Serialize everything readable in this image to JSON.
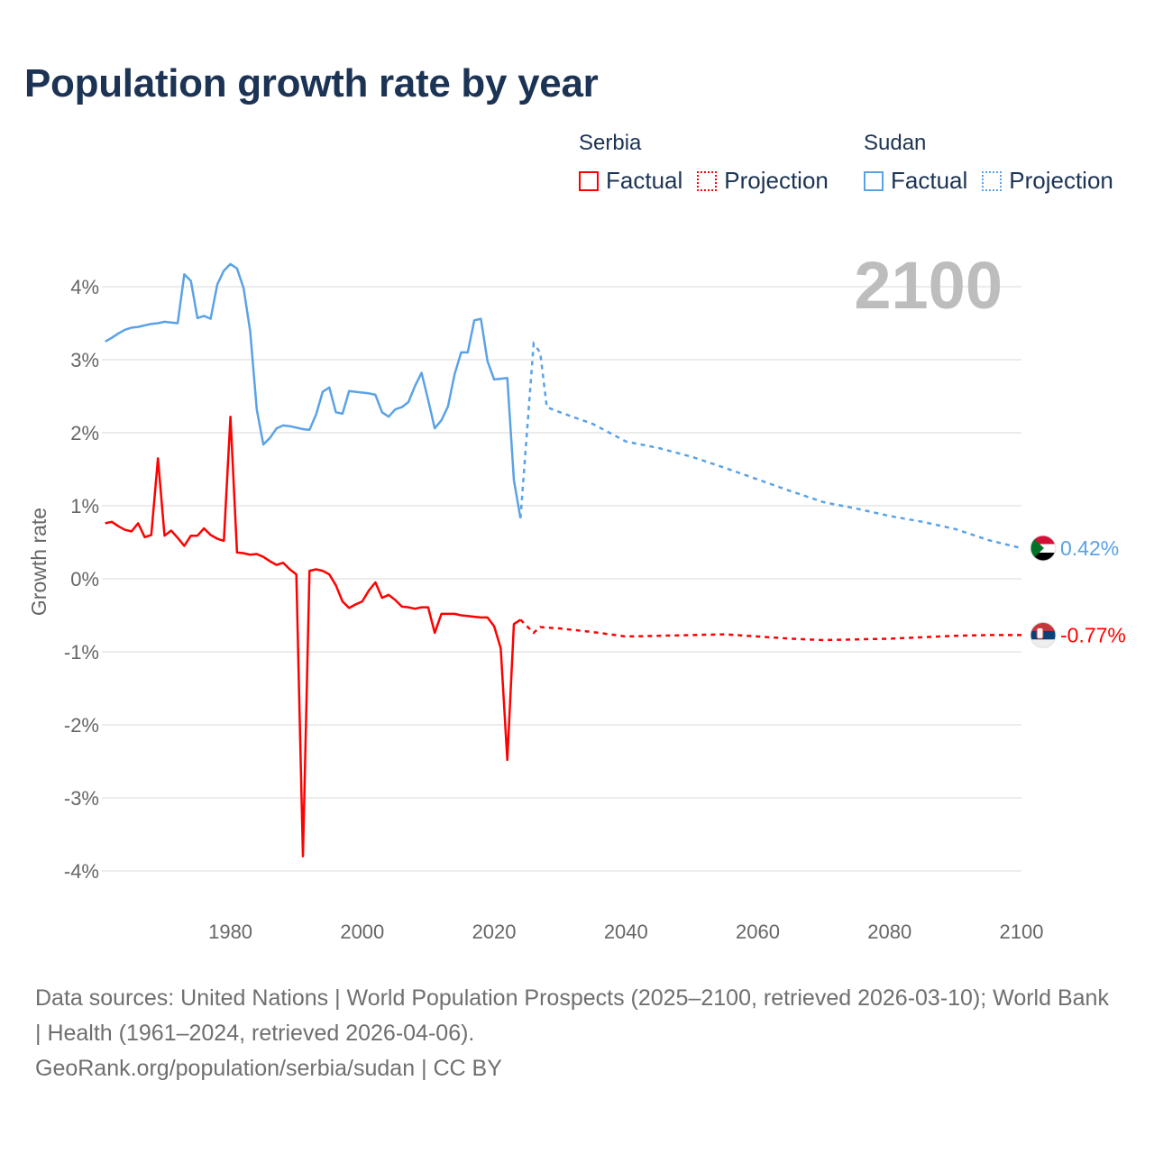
{
  "title": "Population growth rate by year",
  "legend": {
    "groups": [
      {
        "country": "Serbia",
        "factual": "Factual",
        "projection": "Projection",
        "color": "#ff0000"
      },
      {
        "country": "Sudan",
        "factual": "Factual",
        "projection": "Projection",
        "color": "#5aa2e6"
      }
    ]
  },
  "year_overlay": "2100",
  "footer": {
    "sources": "Data sources: United Nations | World Population Prospects (2025–2100, retrieved 2026-03-10); World Bank | Health (1961–2024, retrieved 2026-04-06).",
    "credit": "GeoRank.org/population/serbia/sudan | CC BY"
  },
  "chart_data": {
    "type": "line",
    "title": "Population growth rate by year",
    "xlabel": "",
    "ylabel": "Growth rate",
    "xlim": [
      1960.5,
      2100
    ],
    "ylim": [
      -4.5,
      4.5
    ],
    "x_ticks": [
      1980,
      2000,
      2020,
      2040,
      2060,
      2080,
      2100
    ],
    "x_tick_labels": [
      "1980",
      "2000",
      "2020",
      "2040",
      "2060",
      "2080",
      "2100"
    ],
    "y_ticks": [
      4,
      3,
      2,
      1,
      0,
      -1,
      -2,
      -3,
      -4
    ],
    "y_tick_labels": [
      "4%",
      "3%",
      "2%",
      "1%",
      "0%",
      "-1%",
      "-2%",
      "-3%",
      "-4%"
    ],
    "grid": true,
    "legend_position": "top-right",
    "series": [
      {
        "name": "Sudan",
        "color": "#5aa2e6",
        "end_label": "0.42%",
        "factual": {
          "x": [
            1961,
            1962,
            1963,
            1964,
            1965,
            1966,
            1967,
            1968,
            1969,
            1970,
            1971,
            1972,
            1973,
            1974,
            1975,
            1976,
            1977,
            1978,
            1979,
            1980,
            1981,
            1982,
            1983,
            1984,
            1985,
            1986,
            1987,
            1988,
            1989,
            1990,
            1991,
            1992,
            1993,
            1994,
            1995,
            1996,
            1997,
            1998,
            1999,
            2000,
            2001,
            2002,
            2003,
            2004,
            2005,
            2006,
            2007,
            2008,
            2009,
            2010,
            2011,
            2012,
            2013,
            2014,
            2015,
            2016,
            2017,
            2018,
            2019,
            2020,
            2021,
            2022,
            2023,
            2024
          ],
          "y": [
            3.25,
            3.3,
            3.36,
            3.41,
            3.44,
            3.45,
            3.47,
            3.49,
            3.5,
            3.52,
            3.51,
            3.5,
            4.17,
            4.08,
            3.57,
            3.6,
            3.56,
            4.03,
            4.22,
            4.31,
            4.25,
            3.98,
            3.39,
            2.32,
            1.84,
            1.93,
            2.06,
            2.1,
            2.09,
            2.07,
            2.05,
            2.04,
            2.25,
            2.56,
            2.62,
            2.28,
            2.26,
            2.57,
            2.56,
            2.55,
            2.54,
            2.52,
            2.28,
            2.22,
            2.32,
            2.35,
            2.42,
            2.64,
            2.82,
            2.45,
            2.06,
            2.17,
            2.36,
            2.8,
            3.1,
            3.1,
            3.54,
            3.56,
            2.98,
            2.73,
            2.74,
            2.75,
            1.35,
            0.83
          ]
        },
        "projection": {
          "x": [
            2024,
            2026,
            2027,
            2028,
            2030,
            2035,
            2040,
            2045,
            2050,
            2055,
            2060,
            2065,
            2070,
            2075,
            2080,
            2085,
            2090,
            2095,
            2100
          ],
          "y": [
            0.83,
            3.22,
            3.1,
            2.35,
            2.28,
            2.12,
            1.88,
            1.79,
            1.67,
            1.52,
            1.36,
            1.2,
            1.05,
            0.96,
            0.86,
            0.78,
            0.68,
            0.53,
            0.42
          ]
        }
      },
      {
        "name": "Serbia",
        "color": "#ff0000",
        "end_label": "-0.77%",
        "factual": {
          "x": [
            1961,
            1962,
            1963,
            1964,
            1965,
            1966,
            1967,
            1968,
            1969,
            1970,
            1971,
            1972,
            1973,
            1974,
            1975,
            1976,
            1977,
            1978,
            1979,
            1980,
            1981,
            1982,
            1983,
            1984,
            1985,
            1986,
            1987,
            1988,
            1989,
            1990,
            1991,
            1992,
            1993,
            1994,
            1995,
            1996,
            1997,
            1998,
            1999,
            2000,
            2001,
            2002,
            2003,
            2004,
            2005,
            2006,
            2007,
            2008,
            2009,
            2010,
            2011,
            2012,
            2013,
            2014,
            2015,
            2016,
            2017,
            2018,
            2019,
            2020,
            2021,
            2022,
            2023,
            2024
          ],
          "y": [
            0.76,
            0.78,
            0.72,
            0.67,
            0.65,
            0.76,
            0.57,
            0.6,
            1.65,
            0.59,
            0.66,
            0.56,
            0.45,
            0.59,
            0.59,
            0.69,
            0.6,
            0.55,
            0.52,
            2.22,
            0.36,
            0.35,
            0.33,
            0.34,
            0.3,
            0.24,
            0.19,
            0.22,
            0.13,
            0.06,
            -3.8,
            0.11,
            0.13,
            0.11,
            0.06,
            -0.09,
            -0.31,
            -0.4,
            -0.35,
            -0.31,
            -0.16,
            -0.05,
            -0.26,
            -0.22,
            -0.29,
            -0.38,
            -0.39,
            -0.41,
            -0.39,
            -0.39,
            -0.74,
            -0.48,
            -0.48,
            -0.48,
            -0.5,
            -0.51,
            -0.52,
            -0.53,
            -0.53,
            -0.65,
            -0.95,
            -2.48,
            -0.62,
            -0.56
          ]
        },
        "projection": {
          "x": [
            2024,
            2025,
            2026,
            2027,
            2030,
            2035,
            2040,
            2045,
            2050,
            2055,
            2060,
            2065,
            2070,
            2075,
            2080,
            2085,
            2090,
            2095,
            2100
          ],
          "y": [
            -0.56,
            -0.65,
            -0.74,
            -0.66,
            -0.68,
            -0.73,
            -0.79,
            -0.78,
            -0.77,
            -0.76,
            -0.79,
            -0.82,
            -0.84,
            -0.83,
            -0.82,
            -0.8,
            -0.78,
            -0.77,
            -0.77
          ]
        }
      }
    ]
  }
}
